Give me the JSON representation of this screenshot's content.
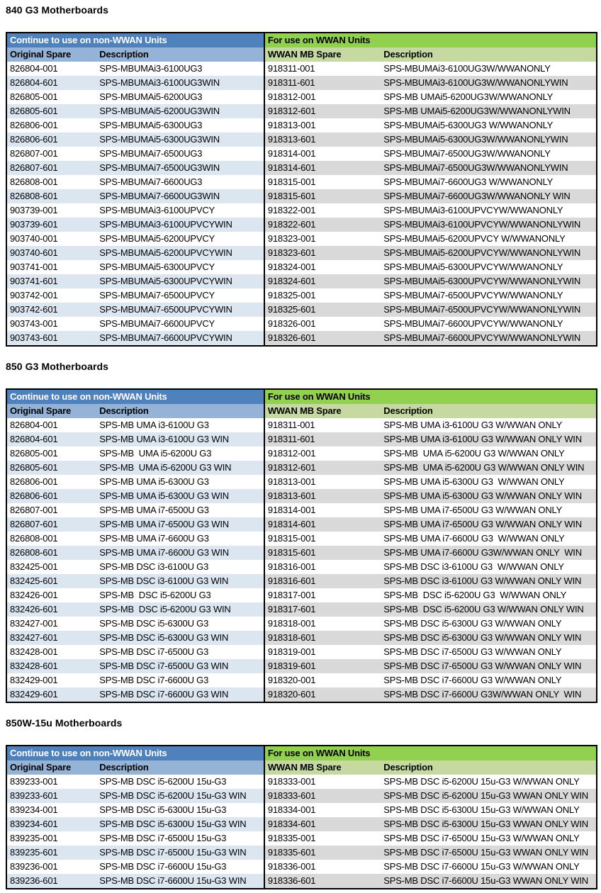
{
  "colors": {
    "non_wwan_band_bg": "#4f81bd",
    "non_wwan_band_text": "#ffffff",
    "non_wwan_subheader_bg": "#95b3d7",
    "non_wwan_alt_row_bg": "#dce6f1",
    "wwan_band_bg": "#92d050",
    "wwan_subheader_bg": "#c5d9a0",
    "wwan_alt_row_bg": "#d9d9d9",
    "table_border": "#000000"
  },
  "tables": [
    {
      "title": "840 G3 Motherboards",
      "left_band": "Continue to use on non-WWAN Units",
      "right_band": "For use on WWAN Units",
      "columns": [
        "Original Spare",
        "Description",
        "WWAN MB Spare",
        "Description"
      ],
      "rows": [
        [
          "826804-001",
          "SPS-MBUMAi3-6100UG3",
          "918311-001",
          "SPS-MBUMAi3-6100UG3W/WWANONLY"
        ],
        [
          "826804-601",
          "SPS-MBUMAi3-6100UG3WIN",
          "918311-601",
          "SPS-MBUMAi3-6100UG3W/WWANONLYWIN"
        ],
        [
          "826805-001",
          "SPS-MBUMAi5-6200UG3",
          "918312-001",
          "SPS-MB UMAi5-6200UG3W/WWANONLY"
        ],
        [
          "826805-601",
          "SPS-MBUMAi5-6200UG3WIN",
          "918312-601",
          "SPS-MB UMAi5-6200UG3W/WWANONLYWIN"
        ],
        [
          "826806-001",
          "SPS-MBUMAi5-6300UG3",
          "918313-001",
          "SPS-MBUMAi5-6300UG3 W/WWANONLY"
        ],
        [
          "826806-601",
          "SPS-MBUMAi5-6300UG3WIN",
          "918313-601",
          "SPS-MBUMAi5-6300UG3W/WWANONLYWIN"
        ],
        [
          "826807-001",
          "SPS-MBUMAi7-6500UG3",
          "918314-001",
          "SPS-MBUMAi7-6500UG3W/WWANONLY"
        ],
        [
          "826807-601",
          "SPS-MBUMAi7-6500UG3WIN",
          "918314-601",
          "SPS-MBUMAi7-6500UG3W/WWANONLYWIN"
        ],
        [
          "826808-001",
          "SPS-MBUMAi7-6600UG3",
          "918315-001",
          "SPS-MBUMAi7-6600UG3 W/WWANONLY"
        ],
        [
          "826808-601",
          "SPS-MBUMAi7-6600UG3WIN",
          "918315-601",
          "SPS-MBUMAi7-6600UG3W/WWANONLY WIN"
        ],
        [
          "903739-001",
          "SPS-MBUMAi3-6100UPVCY",
          "918322-001",
          "SPS-MBUMAi3-6100UPVCYW/WWANONLY"
        ],
        [
          "903739-601",
          "SPS-MBUMAi3-6100UPVCYWIN",
          "918322-601",
          "SPS-MBUMAi3-6100UPVCYW/WWANONLYWIN"
        ],
        [
          "903740-001",
          "SPS-MBUMAi5-6200UPVCY",
          "918323-001",
          "SPS-MBUMAi5-6200UPVCY W/WWANONLY"
        ],
        [
          "903740-601",
          "SPS-MBUMAi5-6200UPVCYWIN",
          "918323-601",
          "SPS-MBUMAi5-6200UPVCYW/WWANONLYWIN"
        ],
        [
          "903741-001",
          "SPS-MBUMAi5-6300UPVCY",
          "918324-001",
          "SPS-MBUMAi5-6300UPVCYW/WWANONLY"
        ],
        [
          "903741-601",
          "SPS-MBUMAi5-6300UPVCYWIN",
          "918324-601",
          "SPS-MBUMAi5-6300UPVCYW/WWANONLYWIN"
        ],
        [
          "903742-001",
          "SPS-MBUMAi7-6500UPVCY",
          "918325-001",
          "SPS-MBUMAi7-6500UPVCYW/WWANONLY"
        ],
        [
          "903742-601",
          "SPS-MBUMAi7-6500UPVCYWIN",
          "918325-601",
          "SPS-MBUMAi7-6500UPVCYW/WWANONLYWIN"
        ],
        [
          "903743-001",
          "SPS-MBUMAi7-6600UPVCY",
          "918326-001",
          "SPS-MBUMAi7-6600UPVCYW/WWANONLY"
        ],
        [
          "903743-601",
          "SPS-MBUMAi7-6600UPVCYWIN",
          "918326-601",
          "SPS-MBUMAi7-6600UPVCYW/WWANONLYWIN"
        ]
      ]
    },
    {
      "title": "850 G3 Motherboards",
      "left_band": "Continue to use on non-WWAN Units",
      "right_band": "For use on WWAN Units",
      "columns": [
        "Original Spare",
        "Description",
        "WWAN MB Spare",
        "Description"
      ],
      "rows": [
        [
          "826804-001",
          "SPS-MB UMA i3-6100U G3",
          "918311-001",
          "SPS-MB UMA i3-6100U G3 W/WWAN ONLY"
        ],
        [
          "826804-601",
          "SPS-MB UMA i3-6100U G3 WIN",
          "918311-601",
          "SPS-MB UMA i3-6100U G3 W/WWAN ONLY WIN"
        ],
        [
          "826805-001",
          "SPS-MB  UMA i5-6200U G3",
          "918312-001",
          "SPS-MB  UMA i5-6200U G3 W/WWAN ONLY"
        ],
        [
          "826805-601",
          "SPS-MB  UMA i5-6200U G3 WIN",
          "918312-601",
          "SPS-MB  UMA i5-6200U G3 W/WWAN ONLY WIN"
        ],
        [
          "826806-001",
          "SPS-MB UMA i5-6300U G3",
          "918313-001",
          "SPS-MB UMA i5-6300U G3  W/WWAN ONLY"
        ],
        [
          "826806-601",
          "SPS-MB UMA i5-6300U G3 WIN",
          "918313-601",
          "SPS-MB UMA i5-6300U G3 W/WWAN ONLY WIN"
        ],
        [
          "826807-001",
          "SPS-MB UMA i7-6500U G3",
          "918314-001",
          "SPS-MB UMA i7-6500U G3 W/WWAN ONLY"
        ],
        [
          "826807-601",
          "SPS-MB UMA i7-6500U G3 WIN",
          "918314-601",
          "SPS-MB UMA i7-6500U G3 W/WWAN ONLY WIN"
        ],
        [
          "826808-001",
          "SPS-MB UMA i7-6600U G3",
          "918315-001",
          "SPS-MB UMA i7-6600U G3  W/WWAN ONLY"
        ],
        [
          "826808-601",
          "SPS-MB UMA i7-6600U G3 WIN",
          "918315-601",
          "SPS-MB UMA i7-6600U G3W/WWAN ONLY  WIN"
        ],
        [
          "832425-001",
          "SPS-MB DSC i3-6100U G3",
          "918316-001",
          "SPS-MB DSC i3-6100U G3  W/WWAN ONLY"
        ],
        [
          "832425-601",
          "SPS-MB DSC i3-6100U G3 WIN",
          "918316-601",
          "SPS-MB DSC i3-6100U G3 W/WWAN ONLY WIN"
        ],
        [
          "832426-001",
          "SPS-MB  DSC i5-6200U G3",
          "918317-001",
          "SPS-MB  DSC i5-6200U G3  W/WWAN ONLY"
        ],
        [
          "832426-601",
          "SPS-MB  DSC i5-6200U G3 WIN",
          "918317-601",
          "SPS-MB  DSC i5-6200U G3 W/WWAN ONLY WIN"
        ],
        [
          "832427-001",
          "SPS-MB DSC i5-6300U G3",
          "918318-001",
          "SPS-MB DSC i5-6300U G3 W/WWAN ONLY"
        ],
        [
          "832427-601",
          "SPS-MB DSC i5-6300U G3 WIN",
          "918318-601",
          "SPS-MB DSC i5-6300U G3 W/WWAN ONLY WIN"
        ],
        [
          "832428-001",
          "SPS-MB DSC i7-6500U G3",
          "918319-001",
          "SPS-MB DSC i7-6500U G3 W/WWAN ONLY"
        ],
        [
          "832428-601",
          "SPS-MB DSC i7-6500U G3 WIN",
          "918319-601",
          "SPS-MB DSC i7-6500U G3 W/WWAN ONLY WIN"
        ],
        [
          "832429-001",
          "SPS-MB DSC i7-6600U G3",
          "918320-001",
          "SPS-MB DSC i7-6600U G3 W/WWAN ONLY"
        ],
        [
          "832429-601",
          "SPS-MB DSC i7-6600U G3 WIN",
          "918320-601",
          "SPS-MB DSC i7-6600U G3W/WWAN ONLY  WIN"
        ]
      ]
    },
    {
      "title": "850W-15u Motherboards",
      "left_band": "Continue to use on non-WWAN Units",
      "right_band": "For use on WWAN Units",
      "columns": [
        "Original Spare",
        "Description",
        "WWAN MB Spare",
        "Description"
      ],
      "rows": [
        [
          "839233-001",
          "SPS-MB DSC i5-6200U 15u-G3",
          "918333-001",
          "SPS-MB DSC i5-6200U 15u-G3 W/WWAN ONLY"
        ],
        [
          "839233-601",
          "SPS-MB DSC i5-6200U 15u-G3 WIN",
          "918333-601",
          "SPS-MB DSC i5-6200U 15u-G3 WWAN ONLY WIN"
        ],
        [
          "839234-001",
          "SPS-MB DSC i5-6300U 15u-G3",
          "918334-001",
          "SPS-MB DSC i5-6300U 15u-G3 W/WWAN ONLY"
        ],
        [
          "839234-601",
          "SPS-MB DSC i5-6300U 15u-G3 WIN",
          "918334-601",
          "SPS-MB DSC i5-6300U 15u-G3 WWAN ONLY WIN"
        ],
        [
          "839235-001",
          "SPS-MB DSC i7-6500U 15u-G3",
          "918335-001",
          "SPS-MB DSC i7-6500U 15u-G3 W/WWAN ONLY"
        ],
        [
          "839235-601",
          "SPS-MB DSC i7-6500U 15u-G3 WIN",
          "918335-601",
          "SPS-MB DSC i7-6500U 15u-G3 WWAN ONLY WIN"
        ],
        [
          "839236-001",
          "SPS-MB DSC i7-6600U 15u-G3",
          "918336-001",
          "SPS-MB DSC i7-6600U 15u-G3 W/WWAN ONLY"
        ],
        [
          "839236-601",
          "SPS-MB DSC i7-6600U 15u-G3 WIN",
          "918336-601",
          "SPS-MB DSC i7-6600U 15u-G3 WWAN ONLY WIN"
        ]
      ]
    }
  ]
}
